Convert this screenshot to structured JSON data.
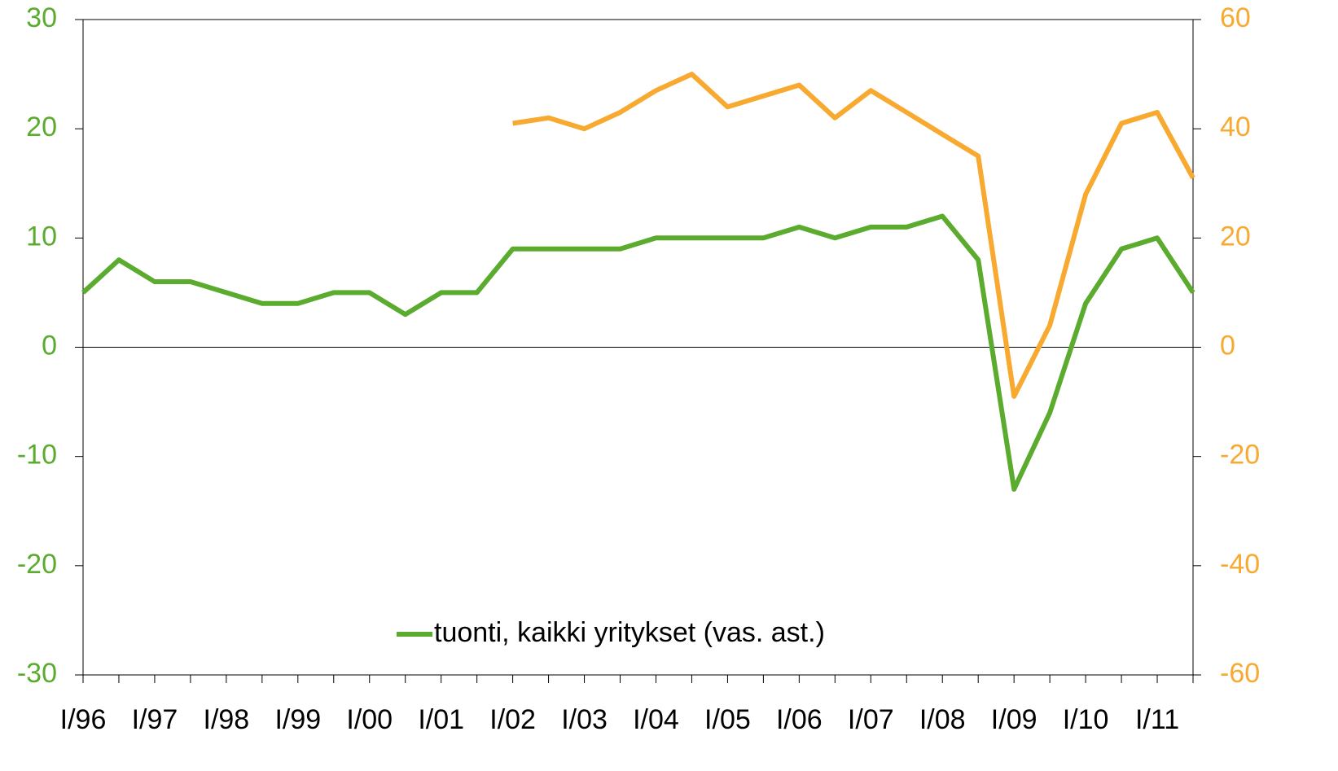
{
  "chart_data": {
    "type": "line",
    "categories": [
      "I/96",
      null,
      "I/97",
      null,
      "I/98",
      null,
      "I/99",
      null,
      "I/00",
      null,
      "I/01",
      null,
      "I/02",
      null,
      "I/03",
      null,
      "I/04",
      null,
      "I/05",
      null,
      "I/06",
      null,
      "I/07",
      null,
      "I/08",
      null,
      "I/09",
      null,
      "I/10",
      null,
      "I/11",
      null
    ],
    "series": [
      {
        "name": "tuonti, kaikki yritykset (vas. ast.)",
        "color": "#5aab2e",
        "axis": "y",
        "values": [
          5,
          8,
          6,
          6,
          5,
          4,
          4,
          5,
          5,
          3,
          5,
          5,
          9,
          9,
          9,
          9,
          10,
          10,
          10,
          10,
          11,
          10,
          11,
          11,
          12,
          8,
          -13,
          -6,
          4,
          9,
          10,
          5
        ]
      },
      {
        "color": "#f7a930",
        "axis": "y2",
        "values": [
          null,
          null,
          null,
          null,
          null,
          null,
          null,
          null,
          null,
          null,
          null,
          null,
          41,
          42,
          40,
          43,
          47,
          50,
          44,
          46,
          48,
          42,
          47,
          43,
          39,
          35,
          -9,
          4,
          28,
          41,
          43,
          31
        ]
      }
    ],
    "ylim": [
      -30,
      30
    ],
    "yticks": [
      -30,
      -20,
      -10,
      0,
      10,
      20,
      30
    ],
    "y2lim": [
      -60,
      60
    ],
    "y2ticks": [
      -60,
      -40,
      -20,
      0,
      20,
      40,
      60
    ],
    "yaxis_color": "#5aab2e",
    "y2axis_color": "#f7a930",
    "legend": "bottom"
  }
}
